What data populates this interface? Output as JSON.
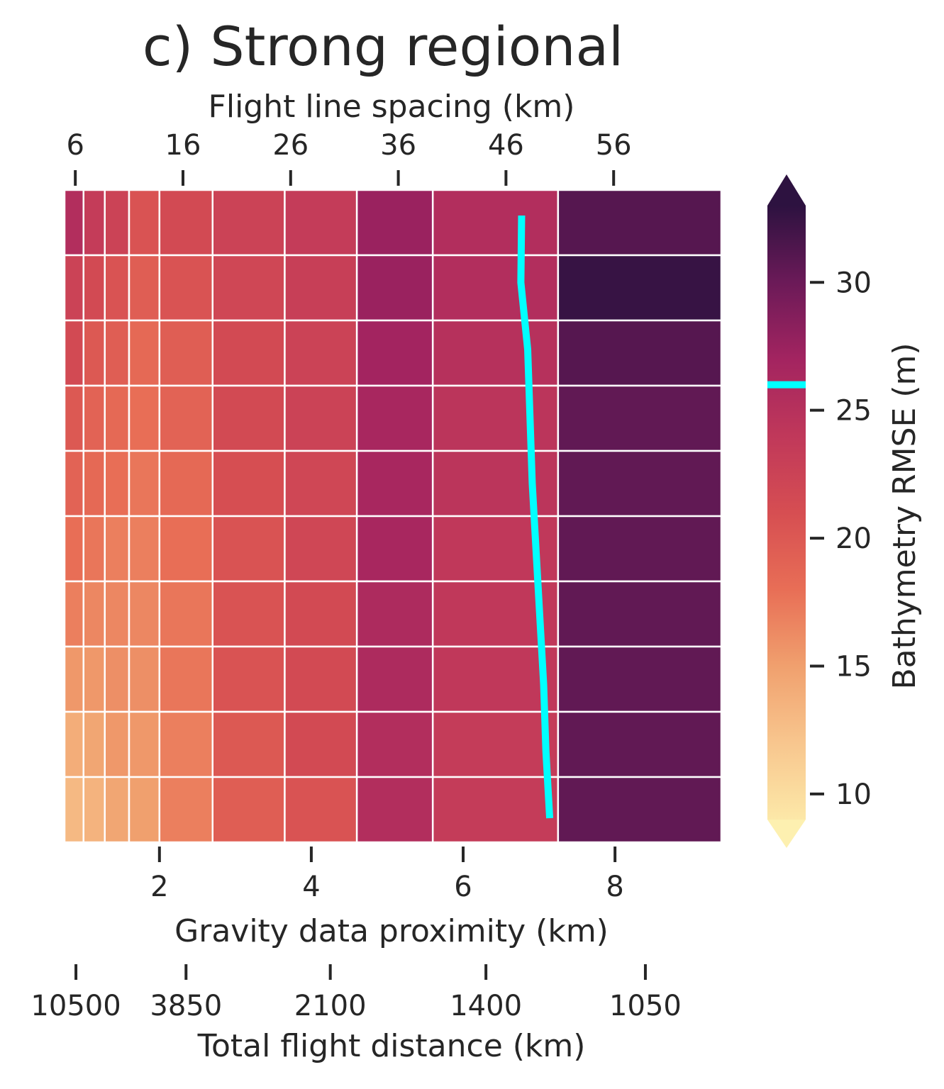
{
  "chart_data": {
    "type": "heatmap",
    "title": "c) Strong regional",
    "x_bottom": {
      "label": "Gravity data proximity (km)",
      "ticks": [
        2,
        4,
        6,
        8
      ],
      "tick_labels": [
        "2",
        "4",
        "6",
        "8"
      ],
      "range": [
        0.75,
        9.4
      ]
    },
    "x_top": {
      "label": "Flight line spacing (km)",
      "ticks": [
        6,
        16,
        26,
        36,
        46,
        56
      ],
      "tick_labels": [
        "6",
        "16",
        "26",
        "36",
        "46",
        "56"
      ],
      "range": [
        5.0,
        66.0
      ]
    },
    "x_bottom2": {
      "label": "Total flight distance (km)",
      "tick_labels": [
        "10500",
        "3850",
        "2100",
        "1400",
        "1050"
      ],
      "tick_at_proximity": [
        0.9,
        2.35,
        4.25,
        6.3,
        8.4
      ]
    },
    "column_edges": [
      0.75,
      1.0,
      1.28,
      1.6,
      2.0,
      2.7,
      3.65,
      4.6,
      5.6,
      7.25,
      9.4
    ],
    "row_count": 10,
    "values": [
      [
        25.5,
        23.5,
        22.5,
        20.5,
        21.5,
        22.5,
        23.5,
        27.5,
        25.5,
        31.0
      ],
      [
        22.5,
        21.5,
        20.5,
        19.5,
        20.5,
        22.0,
        23.0,
        27.5,
        25.5,
        32.5
      ],
      [
        21.5,
        20.0,
        19.5,
        18.5,
        19.5,
        21.5,
        22.5,
        27.0,
        25.0,
        31.0
      ],
      [
        20.0,
        19.0,
        18.5,
        18.0,
        19.0,
        21.5,
        22.5,
        26.5,
        24.5,
        30.5
      ],
      [
        19.0,
        18.5,
        18.0,
        17.5,
        18.5,
        21.0,
        22.0,
        26.5,
        24.5,
        30.5
      ],
      [
        18.0,
        17.5,
        17.0,
        17.0,
        18.0,
        20.5,
        22.0,
        26.5,
        24.0,
        30.5
      ],
      [
        17.0,
        16.5,
        16.5,
        16.5,
        17.5,
        20.5,
        21.5,
        26.0,
        24.0,
        30.5
      ],
      [
        15.5,
        15.5,
        16.0,
        16.0,
        17.5,
        20.5,
        21.5,
        26.0,
        24.0,
        30.5
      ],
      [
        14.0,
        14.5,
        15.5,
        15.5,
        17.0,
        20.0,
        21.5,
        25.5,
        23.5,
        30.5
      ],
      [
        13.0,
        13.5,
        14.5,
        15.0,
        17.0,
        19.5,
        20.5,
        25.5,
        23.5,
        30.5
      ]
    ],
    "contour": {
      "level": 26,
      "color": "#00ffff",
      "x": [
        6.77,
        6.76,
        6.85,
        6.88,
        6.91,
        6.96,
        7.01,
        7.06,
        7.09,
        7.14
      ]
    },
    "colorbar": {
      "label": "Bathymetry RMSE (m)",
      "ticks": [
        10,
        15,
        20,
        25,
        30
      ],
      "tick_labels": [
        "10",
        "15",
        "20",
        "25",
        "30"
      ],
      "range": [
        9,
        33
      ],
      "extend": "both",
      "highlight_value": 26,
      "colormap": "magma",
      "low_color": "#fdf0b0",
      "high_color": "#2d1240",
      "stops": [
        [
          9,
          "#fce8a8"
        ],
        [
          12,
          "#f8c68e"
        ],
        [
          15,
          "#f0a06e"
        ],
        [
          18,
          "#e86e56"
        ],
        [
          21,
          "#d64e52"
        ],
        [
          24,
          "#c0385a"
        ],
        [
          27,
          "#a32460"
        ],
        [
          30,
          "#6b1a58"
        ],
        [
          33,
          "#2d1240"
        ]
      ]
    }
  }
}
